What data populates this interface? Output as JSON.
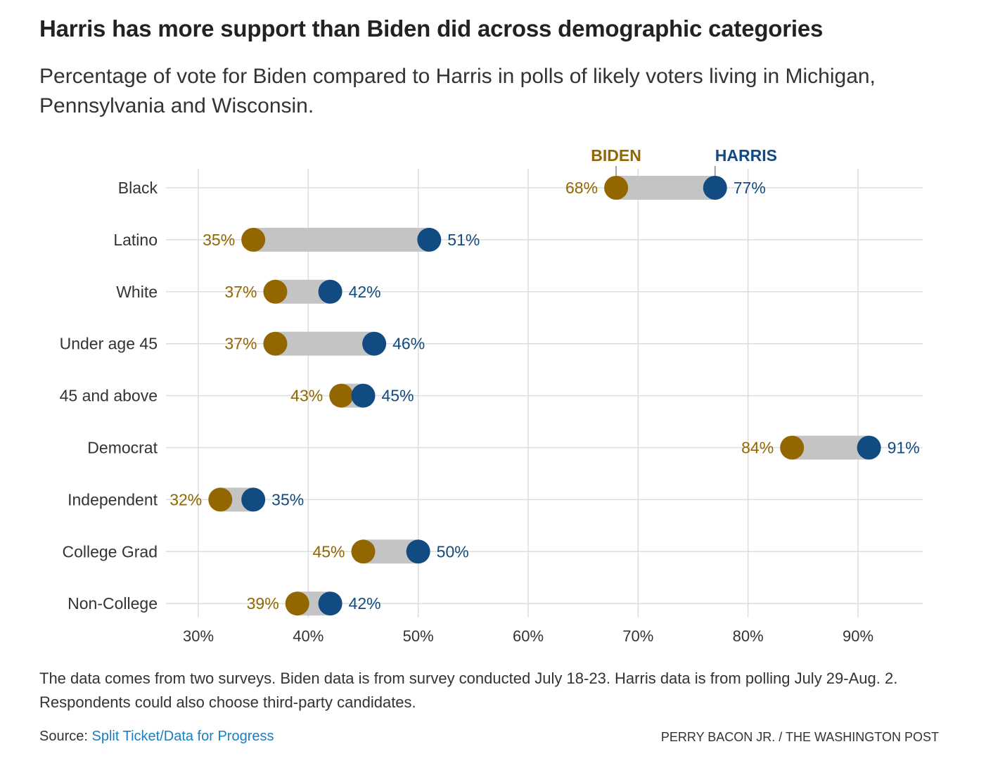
{
  "title": "Harris has more support than Biden did across demographic categories",
  "subtitle": "Percentage of vote for Biden compared to Harris in polls of likely voters living in Michigan, Pennsylvania and Wisconsin.",
  "note": "The data comes from two surveys. Biden data is from survey conducted July 18-23. Harris data is from polling July 29-Aug. 2. Respondents could also choose third-party candidates.",
  "source_label": "Source:",
  "source_link": "Split Ticket/Data for Progress",
  "credit": "PERRY BACON JR. / THE WASHINGTON POST",
  "colors": {
    "biden": "#936700",
    "harris": "#114b82",
    "bar": "#c4c4c4",
    "grid": "#dddddd"
  },
  "chart_data": {
    "type": "dumbbell",
    "title": "Harris has more support than Biden did across demographic categories",
    "xlabel": "",
    "ylabel": "",
    "xlim": [
      30,
      95
    ],
    "xticks": [
      30,
      40,
      50,
      60,
      70,
      80,
      90
    ],
    "xtick_labels": [
      "30%",
      "40%",
      "50%",
      "60%",
      "70%",
      "80%",
      "90%"
    ],
    "grid": true,
    "legend": {
      "placement": "top, annotating first row",
      "entries": [
        "BIDEN",
        "HARRIS"
      ]
    },
    "categories": [
      "Black",
      "Latino",
      "White",
      "Under age 45",
      "45 and above",
      "Democrat",
      "Independent",
      "College Grad",
      "Non-College"
    ],
    "series": [
      {
        "name": "BIDEN",
        "values": [
          68,
          35,
          37,
          37,
          43,
          84,
          32,
          45,
          39
        ]
      },
      {
        "name": "HARRIS",
        "values": [
          77,
          51,
          42,
          46,
          45,
          91,
          35,
          50,
          42
        ]
      }
    ]
  }
}
